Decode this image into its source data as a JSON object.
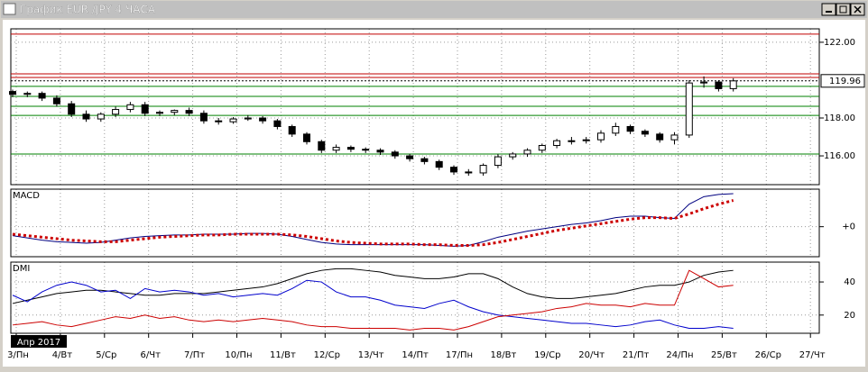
{
  "window": {
    "title": "График EUR /JPY  4 ЧАСА"
  },
  "x_axis": {
    "labels": [
      "3/Пн",
      "4/Вт",
      "5/Ср",
      "6/Чт",
      "7/Пт",
      "10/Пн",
      "11/Вт",
      "12/Ср",
      "13/Чт",
      "14/Пт",
      "17/Пн",
      "18/Вт",
      "19/Ср",
      "20/Чт",
      "21/Пт",
      "24/Пн",
      "25/Вт",
      "26/Ср",
      "27/Чт"
    ],
    "period": "Апр 2017"
  },
  "chart_data": [
    {
      "type": "candlestick",
      "ylim": [
        114.48,
        122.71
      ],
      "yticks": [
        {
          "value": 122,
          "label": "122.00"
        },
        {
          "value": 118,
          "label": "118.00"
        },
        {
          "value": 116,
          "label": "116.00"
        }
      ],
      "last": 119.96,
      "levels": [
        {
          "value": 122.43,
          "color": "#c00000"
        },
        {
          "value": 120.33,
          "color": "#c00000"
        },
        {
          "value": 120.14,
          "color": "#c00000"
        },
        {
          "value": 119.67,
          "color": "#008000"
        },
        {
          "value": 119.14,
          "color": "#008000"
        },
        {
          "value": 118.62,
          "color": "#008000"
        },
        {
          "value": 118.14,
          "color": "#008000"
        },
        {
          "value": 116.1,
          "color": "#008000"
        }
      ],
      "open": [
        119.4,
        119.25,
        119.3,
        119.05,
        118.75,
        118.2,
        117.95,
        118.2,
        118.45,
        118.7,
        118.25,
        118.3,
        118.4,
        118.25,
        117.85,
        117.8,
        117.95,
        118.0,
        117.85,
        117.55,
        117.15,
        116.75,
        116.3,
        116.45,
        116.35,
        116.3,
        116.2,
        116.0,
        115.85,
        115.7,
        115.4,
        115.15,
        115.1,
        115.5,
        115.95,
        116.1,
        116.3,
        116.55,
        116.8,
        116.8,
        116.85,
        117.2,
        117.55,
        117.3,
        117.15,
        116.85,
        117.1,
        119.85,
        119.9,
        119.55
      ],
      "high": [
        119.5,
        119.4,
        119.4,
        119.2,
        118.9,
        118.4,
        118.3,
        118.6,
        118.85,
        118.85,
        118.4,
        118.45,
        118.55,
        118.4,
        118.0,
        118.05,
        118.15,
        118.1,
        117.95,
        117.65,
        117.25,
        116.85,
        116.6,
        116.55,
        116.45,
        116.4,
        116.3,
        116.1,
        115.95,
        115.8,
        115.5,
        115.3,
        115.6,
        116.1,
        116.2,
        116.4,
        116.65,
        116.9,
        117.0,
        117.0,
        117.35,
        117.75,
        117.65,
        117.4,
        117.25,
        117.25,
        120.0,
        120.2,
        120.0,
        120.1
      ],
      "low": [
        119.1,
        119.1,
        118.9,
        118.6,
        118.05,
        117.8,
        117.8,
        118.05,
        118.3,
        118.1,
        118.1,
        118.15,
        118.1,
        117.7,
        117.65,
        117.7,
        117.85,
        117.7,
        117.4,
        117.0,
        116.6,
        116.15,
        116.15,
        116.2,
        116.15,
        116.05,
        115.85,
        115.7,
        115.55,
        115.25,
        115.0,
        114.95,
        114.95,
        115.35,
        115.8,
        115.95,
        116.15,
        116.4,
        116.6,
        116.65,
        116.7,
        117.05,
        117.15,
        117.0,
        116.7,
        116.6,
        116.95,
        119.6,
        119.4,
        119.4
      ],
      "close": [
        119.25,
        119.3,
        119.05,
        118.75,
        118.2,
        117.95,
        118.2,
        118.45,
        118.7,
        118.25,
        118.3,
        118.4,
        118.25,
        117.85,
        117.8,
        117.95,
        118.0,
        117.85,
        117.55,
        117.15,
        116.75,
        116.3,
        116.45,
        116.35,
        116.3,
        116.2,
        116.0,
        115.85,
        115.7,
        115.4,
        115.15,
        115.1,
        115.5,
        115.95,
        116.1,
        116.3,
        116.55,
        116.8,
        116.8,
        116.85,
        117.2,
        117.55,
        117.3,
        117.15,
        116.85,
        117.1,
        119.85,
        119.9,
        119.55,
        119.96
      ]
    },
    {
      "type": "line",
      "title": "MACD",
      "ylim": [
        -0.4,
        0.5
      ],
      "yticks": [
        {
          "value": 0,
          "label": "+0"
        }
      ],
      "series": [
        {
          "color": "#000080",
          "style": "solid",
          "values": [
            -0.12,
            -0.15,
            -0.18,
            -0.2,
            -0.21,
            -0.22,
            -0.21,
            -0.18,
            -0.15,
            -0.13,
            -0.12,
            -0.11,
            -0.11,
            -0.1,
            -0.1,
            -0.1,
            -0.09,
            -0.09,
            -0.1,
            -0.13,
            -0.17,
            -0.21,
            -0.23,
            -0.24,
            -0.24,
            -0.24,
            -0.24,
            -0.24,
            -0.24,
            -0.25,
            -0.26,
            -0.25,
            -0.2,
            -0.14,
            -0.1,
            -0.06,
            -0.03,
            0.0,
            0.03,
            0.05,
            0.08,
            0.12,
            0.14,
            0.14,
            0.12,
            0.11,
            0.3,
            0.4,
            0.43,
            0.44
          ]
        },
        {
          "color": "#cc0000",
          "style": "dotted",
          "values": [
            -0.1,
            -0.12,
            -0.14,
            -0.16,
            -0.18,
            -0.19,
            -0.2,
            -0.2,
            -0.18,
            -0.16,
            -0.14,
            -0.13,
            -0.12,
            -0.11,
            -0.11,
            -0.1,
            -0.1,
            -0.1,
            -0.1,
            -0.11,
            -0.13,
            -0.16,
            -0.19,
            -0.21,
            -0.22,
            -0.23,
            -0.23,
            -0.23,
            -0.24,
            -0.24,
            -0.25,
            -0.25,
            -0.24,
            -0.21,
            -0.17,
            -0.13,
            -0.09,
            -0.05,
            -0.02,
            0.01,
            0.04,
            0.07,
            0.1,
            0.12,
            0.12,
            0.11,
            0.17,
            0.24,
            0.3,
            0.35
          ]
        }
      ]
    },
    {
      "type": "line",
      "title": "DMI",
      "ylim": [
        9,
        52
      ],
      "yticks": [
        40,
        20
      ],
      "series": [
        {
          "color": "#000000",
          "style": "solid",
          "values": [
            27,
            29,
            31,
            33,
            34,
            35,
            35,
            34,
            33,
            32,
            32,
            33,
            33,
            33,
            34,
            35,
            36,
            37,
            39,
            42,
            45,
            47,
            48,
            48,
            47,
            46,
            44,
            43,
            42,
            42,
            43,
            45,
            45,
            42,
            37,
            33,
            31,
            30,
            30,
            31,
            32,
            33,
            35,
            37,
            38,
            38,
            40,
            44,
            46,
            47
          ]
        },
        {
          "color": "#0000cc",
          "style": "solid",
          "values": [
            32,
            28,
            34,
            38,
            40,
            38,
            34,
            35,
            30,
            36,
            34,
            35,
            34,
            32,
            33,
            31,
            32,
            33,
            32,
            36,
            41,
            40,
            34,
            31,
            31,
            29,
            26,
            25,
            24,
            27,
            29,
            25,
            22,
            20,
            19,
            18,
            17,
            16,
            15,
            15,
            14,
            13,
            14,
            16,
            17,
            14,
            12,
            12,
            13,
            12
          ]
        },
        {
          "color": "#cc0000",
          "style": "solid",
          "values": [
            14,
            15,
            16,
            14,
            13,
            15,
            17,
            19,
            18,
            20,
            18,
            19,
            17,
            16,
            17,
            16,
            17,
            18,
            17,
            16,
            14,
            13,
            13,
            12,
            12,
            12,
            12,
            11,
            12,
            12,
            11,
            13,
            16,
            19,
            20,
            21,
            22,
            24,
            25,
            27,
            26,
            26,
            25,
            27,
            26,
            26,
            47,
            42,
            37,
            38
          ]
        }
      ]
    }
  ]
}
